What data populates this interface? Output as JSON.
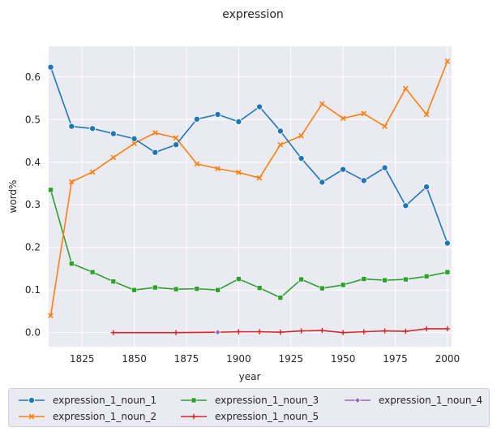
{
  "chart_data": {
    "type": "line",
    "title": "expression",
    "xlabel": "year",
    "ylabel": "word%",
    "xlim": [
      1809,
      2002
    ],
    "ylim": [
      -0.033,
      0.672
    ],
    "xticks": [
      1825,
      1850,
      1875,
      1900,
      1925,
      1950,
      1975,
      2000
    ],
    "yticks": [
      0.0,
      0.1,
      0.2,
      0.3,
      0.4,
      0.5,
      0.6
    ],
    "xtick_labels": [
      "1825",
      "1850",
      "1875",
      "1900",
      "1925",
      "1950",
      "1975",
      "2000"
    ],
    "ytick_labels": [
      "0.0",
      "0.1",
      "0.2",
      "0.3",
      "0.4",
      "0.5",
      "0.6"
    ],
    "grid": true,
    "legend_position": "bottom",
    "series": [
      {
        "name": "expression_1_noun_1",
        "color": "#1f77b4",
        "marker": "circle",
        "x": [
          1810,
          1820,
          1830,
          1840,
          1850,
          1860,
          1870,
          1880,
          1890,
          1900,
          1910,
          1920,
          1930,
          1940,
          1950,
          1960,
          1970,
          1980,
          1990,
          2000
        ],
        "y": [
          0.623,
          0.484,
          0.479,
          0.467,
          0.455,
          0.423,
          0.441,
          0.501,
          0.512,
          0.495,
          0.53,
          0.473,
          0.409,
          0.353,
          0.383,
          0.357,
          0.387,
          0.298,
          0.342,
          0.21
        ]
      },
      {
        "name": "expression_1_noun_2",
        "color": "#ff7f0e",
        "marker": "x",
        "x": [
          1810,
          1820,
          1830,
          1840,
          1850,
          1860,
          1870,
          1880,
          1890,
          1900,
          1910,
          1920,
          1930,
          1940,
          1950,
          1960,
          1970,
          1980,
          1990,
          2000
        ],
        "y": [
          0.04,
          0.354,
          0.377,
          0.411,
          0.444,
          0.469,
          0.457,
          0.396,
          0.385,
          0.376,
          0.363,
          0.441,
          0.462,
          0.537,
          0.503,
          0.514,
          0.484,
          0.573,
          0.512,
          0.637
        ]
      },
      {
        "name": "expression_1_noun_3",
        "color": "#2ca02c",
        "marker": "square",
        "x": [
          1810,
          1820,
          1830,
          1840,
          1850,
          1860,
          1870,
          1880,
          1890,
          1900,
          1910,
          1920,
          1930,
          1940,
          1950,
          1960,
          1970,
          1980,
          1990,
          2000
        ],
        "y": [
          0.335,
          0.162,
          0.142,
          0.12,
          0.1,
          0.106,
          0.102,
          0.103,
          0.1,
          0.126,
          0.105,
          0.082,
          0.125,
          0.104,
          0.112,
          0.126,
          0.123,
          0.125,
          0.132,
          0.142
        ]
      },
      {
        "name": "expression_1_noun_4",
        "color": "#9467bd",
        "marker": "diamond",
        "x": [
          1890
        ],
        "y": [
          0.001
        ]
      },
      {
        "name": "expression_1_noun_5",
        "color": "#d62728",
        "marker": "plus",
        "x": [
          1840,
          1870,
          1890,
          1900,
          1910,
          1920,
          1930,
          1940,
          1950,
          1960,
          1970,
          1980,
          1990,
          2000
        ],
        "y": [
          0.0,
          0.0,
          0.001,
          0.002,
          0.002,
          0.001,
          0.004,
          0.005,
          0.0,
          0.002,
          0.004,
          0.003,
          0.009,
          0.009
        ]
      }
    ],
    "legend_order": [
      0,
      1,
      2,
      4,
      3
    ]
  }
}
